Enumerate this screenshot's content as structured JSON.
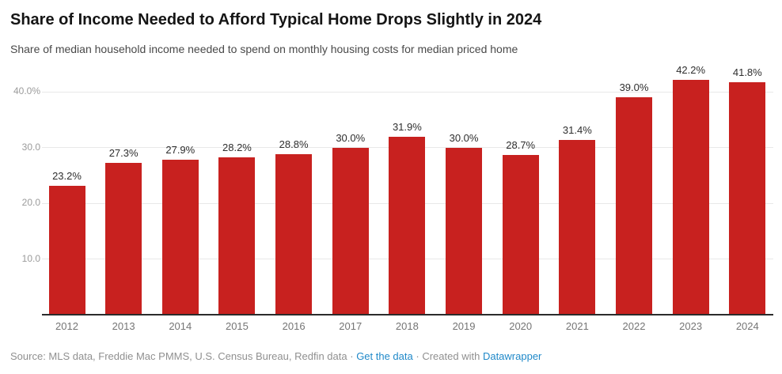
{
  "header": {
    "title": "Share of Income Needed to Afford Typical Home Drops Slightly in 2024",
    "subtitle": "Share of median household income needed to spend on monthly housing costs for median priced home"
  },
  "chart_data": {
    "type": "bar",
    "title": "Share of Income Needed to Afford Typical Home Drops Slightly in 2024",
    "subtitle": "Share of median household income needed to spend on monthly housing costs for median priced home",
    "xlabel": "",
    "ylabel": "",
    "categories": [
      "2012",
      "2013",
      "2014",
      "2015",
      "2016",
      "2017",
      "2018",
      "2019",
      "2020",
      "2021",
      "2022",
      "2023",
      "2024"
    ],
    "values": [
      23.2,
      27.3,
      27.9,
      28.2,
      28.8,
      30.0,
      31.9,
      30.0,
      28.7,
      31.4,
      39.0,
      42.2,
      41.8
    ],
    "value_labels": [
      "23.2%",
      "27.3%",
      "27.9%",
      "28.2%",
      "28.8%",
      "30.0%",
      "31.9%",
      "30.0%",
      "28.7%",
      "31.4%",
      "39.0%",
      "42.2%",
      "41.8%"
    ],
    "y_ticks": [
      {
        "value": 40,
        "label": "40.0%"
      },
      {
        "value": 30,
        "label": "30.0"
      },
      {
        "value": 20,
        "label": "20.0"
      },
      {
        "value": 10,
        "label": "10.0"
      }
    ],
    "ylim": [
      0,
      44
    ],
    "grid": true,
    "legend": "none"
  },
  "footer": {
    "source_text": "Source: MLS data, Freddie Mac PMMS, U.S. Census Bureau, Redfin data",
    "separator": "·",
    "get_data_link": "Get the data",
    "created_with": "Created with",
    "datawrapper_link": "Datawrapper"
  },
  "colors": {
    "bar": "#c8211f",
    "link": "#2089c9",
    "title": "#151515",
    "subtitle": "#494949",
    "axis_label": "#757575",
    "tick_label": "#9b9b9b",
    "gridline": "#e8e8e8",
    "baseline": "#2b2b2b",
    "footer_text": "#909090"
  }
}
